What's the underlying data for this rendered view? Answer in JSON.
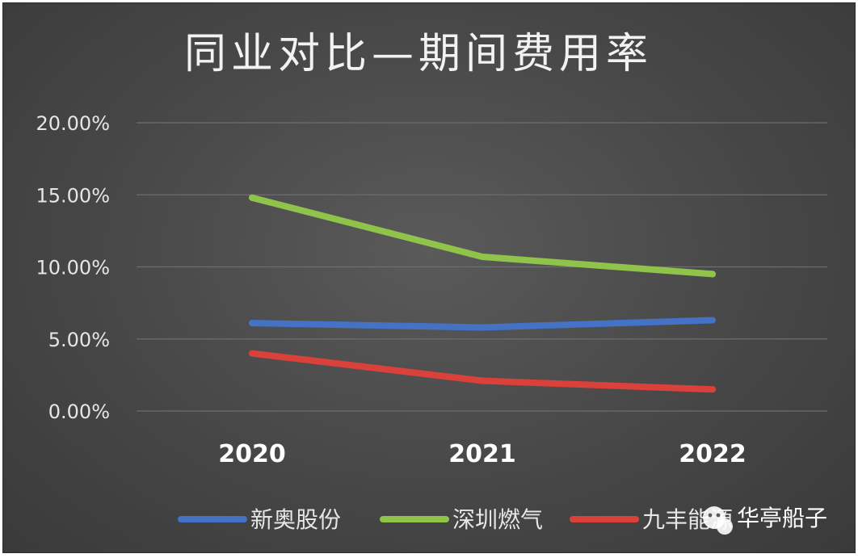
{
  "chart_data": {
    "type": "line",
    "title": "同业对比—期间费用率",
    "categories": [
      "2020",
      "2021",
      "2022"
    ],
    "ylim": [
      0,
      20
    ],
    "yticks": [
      "0.00%",
      "5.00%",
      "10.00%",
      "15.00%",
      "20.00%"
    ],
    "grid": true,
    "legend_position": "bottom",
    "series": [
      {
        "name": "新奥股份",
        "values": [
          6.1,
          5.8,
          6.3
        ],
        "color": "#4472c4"
      },
      {
        "name": "深圳燃气",
        "values": [
          14.8,
          10.7,
          9.5
        ],
        "color": "#8fc34a"
      },
      {
        "name": "九丰能源",
        "values": [
          4.0,
          2.1,
          1.5
        ],
        "color": "#d9413a"
      }
    ]
  },
  "watermark": {
    "text": "华亭船子",
    "icon": "wechat-icon"
  }
}
